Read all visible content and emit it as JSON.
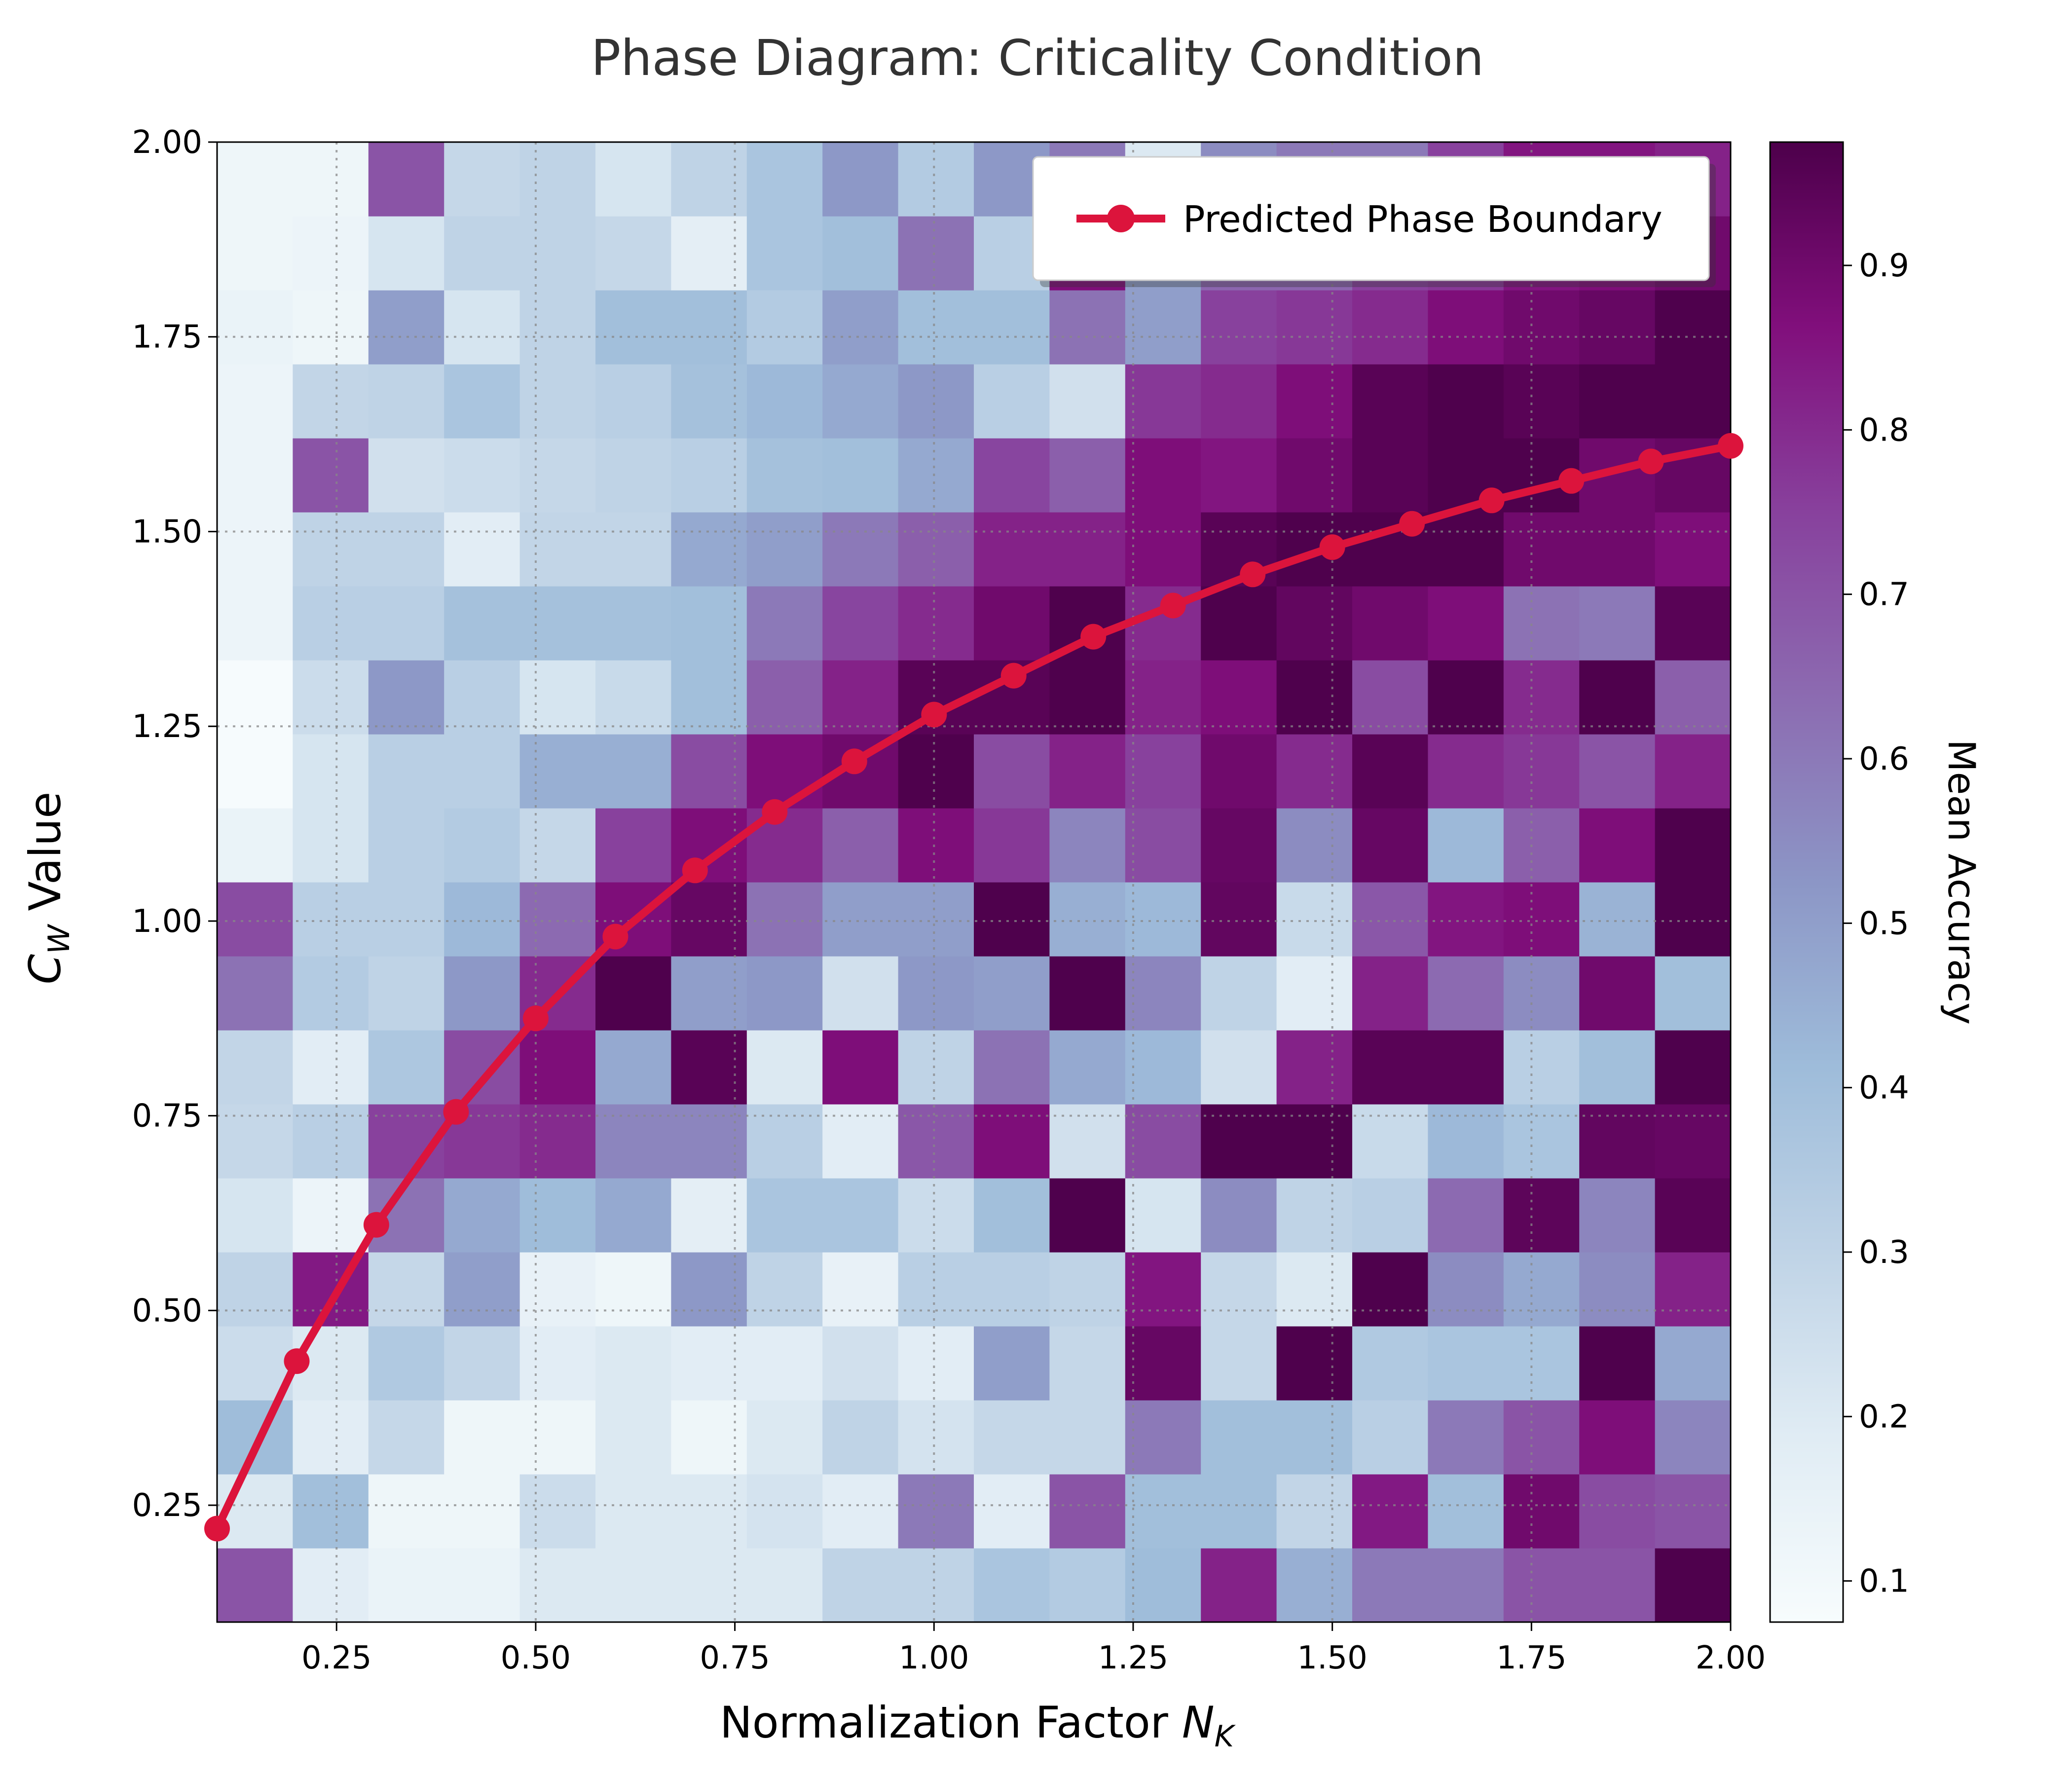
{
  "chart_data": {
    "type": "heatmap",
    "title": "Phase Diagram: Criticality Condition",
    "xlabel_text": "Normalization Factor ",
    "xlabel_symbol": "N",
    "xlabel_subscript": "K",
    "ylabel_symbol": "C",
    "ylabel_subscript": "W",
    "ylabel_text": " Value",
    "colorbar_label": "Mean Accuracy",
    "legend_label": "Predicted Phase Boundary",
    "legend_position": "top-right",
    "grid": true,
    "xlim": [
      0.1,
      2.0
    ],
    "ylim": [
      0.1,
      2.0
    ],
    "x_ticks": [
      "0.25",
      "0.50",
      "0.75",
      "1.00",
      "1.25",
      "1.50",
      "1.75",
      "2.00"
    ],
    "y_ticks": [
      "0.25",
      "0.50",
      "0.75",
      "1.00",
      "1.25",
      "1.50",
      "1.75",
      "2.00"
    ],
    "colorbar_ticks": [
      "0.1",
      "0.2",
      "0.3",
      "0.4",
      "0.5",
      "0.6",
      "0.7",
      "0.8",
      "0.9"
    ],
    "color_range": [
      0.075,
      0.975
    ],
    "colormap": [
      "#f7fcfd",
      "#e0ecf4",
      "#bfd3e6",
      "#9ebcda",
      "#8c96c6",
      "#8c6bb1",
      "#88419d",
      "#810f7c",
      "#4d004b"
    ],
    "grid_rows_bottom_to_top": [
      [
        0.7,
        0.18,
        0.14,
        0.14,
        0.2,
        0.2,
        0.2,
        0.2,
        0.3,
        0.3,
        0.37,
        0.34,
        0.41,
        0.82,
        0.45,
        0.6,
        0.6,
        0.7,
        0.7,
        0.97
      ],
      [
        0.2,
        0.4,
        0.12,
        0.12,
        0.26,
        0.2,
        0.2,
        0.23,
        0.18,
        0.6,
        0.18,
        0.7,
        0.4,
        0.4,
        0.29,
        0.84,
        0.4,
        0.9,
        0.72,
        0.7
      ],
      [
        0.41,
        0.18,
        0.28,
        0.12,
        0.12,
        0.2,
        0.12,
        0.2,
        0.3,
        0.23,
        0.28,
        0.28,
        0.6,
        0.4,
        0.4,
        0.32,
        0.6,
        0.7,
        0.87,
        0.57
      ],
      [
        0.26,
        0.2,
        0.35,
        0.29,
        0.18,
        0.2,
        0.18,
        0.18,
        0.24,
        0.18,
        0.5,
        0.28,
        0.92,
        0.28,
        0.97,
        0.35,
        0.37,
        0.37,
        0.97,
        0.47
      ],
      [
        0.3,
        0.84,
        0.28,
        0.5,
        0.15,
        0.12,
        0.52,
        0.3,
        0.15,
        0.32,
        0.32,
        0.3,
        0.85,
        0.28,
        0.2,
        0.97,
        0.55,
        0.47,
        0.55,
        0.82
      ],
      [
        0.22,
        0.13,
        0.62,
        0.47,
        0.41,
        0.47,
        0.17,
        0.37,
        0.37,
        0.26,
        0.4,
        0.97,
        0.22,
        0.55,
        0.3,
        0.32,
        0.64,
        0.94,
        0.57,
        0.95
      ],
      [
        0.28,
        0.32,
        0.75,
        0.77,
        0.8,
        0.57,
        0.57,
        0.32,
        0.18,
        0.69,
        0.87,
        0.24,
        0.72,
        0.97,
        0.97,
        0.27,
        0.42,
        0.37,
        0.93,
        0.92
      ],
      [
        0.29,
        0.18,
        0.36,
        0.72,
        0.87,
        0.47,
        0.95,
        0.2,
        0.87,
        0.3,
        0.62,
        0.47,
        0.42,
        0.24,
        0.82,
        0.95,
        0.95,
        0.32,
        0.4,
        0.97
      ],
      [
        0.62,
        0.34,
        0.3,
        0.52,
        0.8,
        0.97,
        0.5,
        0.52,
        0.24,
        0.52,
        0.5,
        0.97,
        0.57,
        0.3,
        0.18,
        0.82,
        0.64,
        0.55,
        0.9,
        0.4
      ],
      [
        0.72,
        0.32,
        0.32,
        0.42,
        0.64,
        0.87,
        0.92,
        0.62,
        0.5,
        0.5,
        0.97,
        0.45,
        0.42,
        0.93,
        0.27,
        0.69,
        0.85,
        0.87,
        0.44,
        0.97
      ],
      [
        0.14,
        0.22,
        0.32,
        0.34,
        0.28,
        0.75,
        0.87,
        0.8,
        0.67,
        0.87,
        0.77,
        0.57,
        0.72,
        0.92,
        0.55,
        0.92,
        0.42,
        0.67,
        0.87,
        0.97
      ],
      [
        0.08,
        0.22,
        0.32,
        0.32,
        0.45,
        0.45,
        0.72,
        0.87,
        0.9,
        0.97,
        0.72,
        0.82,
        0.75,
        0.9,
        0.8,
        0.95,
        0.8,
        0.77,
        0.7,
        0.82
      ],
      [
        0.08,
        0.26,
        0.52,
        0.32,
        0.22,
        0.27,
        0.4,
        0.67,
        0.82,
        0.95,
        0.95,
        0.97,
        0.82,
        0.87,
        0.97,
        0.72,
        0.97,
        0.8,
        0.97,
        0.67
      ],
      [
        0.13,
        0.32,
        0.32,
        0.39,
        0.39,
        0.39,
        0.4,
        0.6,
        0.74,
        0.8,
        0.9,
        0.97,
        0.8,
        0.97,
        0.93,
        0.9,
        0.87,
        0.62,
        0.6,
        0.95
      ],
      [
        0.13,
        0.3,
        0.3,
        0.18,
        0.29,
        0.29,
        0.47,
        0.5,
        0.6,
        0.67,
        0.82,
        0.82,
        0.87,
        0.95,
        0.97,
        0.97,
        0.97,
        0.9,
        0.9,
        0.87
      ],
      [
        0.13,
        0.7,
        0.24,
        0.26,
        0.28,
        0.3,
        0.32,
        0.39,
        0.4,
        0.47,
        0.74,
        0.67,
        0.87,
        0.85,
        0.9,
        0.95,
        0.97,
        0.97,
        0.9,
        0.92
      ],
      [
        0.13,
        0.29,
        0.3,
        0.37,
        0.3,
        0.32,
        0.39,
        0.42,
        0.47,
        0.52,
        0.32,
        0.24,
        0.77,
        0.8,
        0.87,
        0.95,
        0.97,
        0.95,
        0.97,
        0.97
      ],
      [
        0.14,
        0.12,
        0.5,
        0.22,
        0.3,
        0.4,
        0.4,
        0.34,
        0.5,
        0.4,
        0.4,
        0.62,
        0.5,
        0.75,
        0.77,
        0.8,
        0.87,
        0.9,
        0.92,
        0.97
      ],
      [
        0.12,
        0.13,
        0.22,
        0.3,
        0.3,
        0.28,
        0.17,
        0.37,
        0.4,
        0.62,
        0.32,
        0.87,
        0.5,
        0.65,
        0.65,
        0.75,
        0.77,
        0.85,
        0.87,
        0.9
      ],
      [
        0.12,
        0.12,
        0.7,
        0.28,
        0.3,
        0.22,
        0.3,
        0.37,
        0.52,
        0.34,
        0.52,
        0.6,
        0.2,
        0.55,
        0.6,
        0.6,
        0.75,
        0.85,
        0.85,
        0.82
      ]
    ],
    "series": [
      {
        "name": "Predicted Phase Boundary",
        "x": [
          0.1,
          0.2,
          0.3,
          0.4,
          0.5,
          0.6,
          0.7,
          0.8,
          0.9,
          1.0,
          1.1,
          1.2,
          1.3,
          1.4,
          1.5,
          1.6,
          1.7,
          1.8,
          1.9,
          2.0
        ],
        "y": [
          0.22,
          0.435,
          0.61,
          0.755,
          0.875,
          0.98,
          1.065,
          1.14,
          1.205,
          1.265,
          1.315,
          1.365,
          1.405,
          1.445,
          1.48,
          1.51,
          1.54,
          1.565,
          1.59,
          1.61
        ]
      }
    ],
    "colors": {
      "boundary": "#dc143c",
      "title": "#333333",
      "grid": "#888888"
    }
  }
}
